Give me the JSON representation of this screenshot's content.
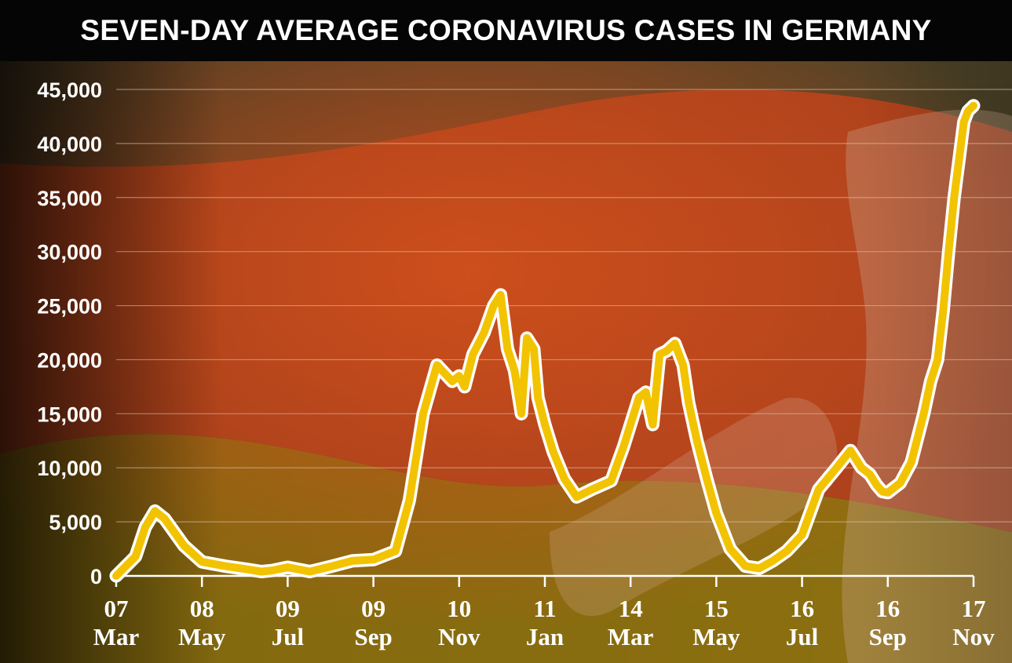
{
  "title": "SEVEN-DAY AVERAGE CORONAVIRUS CASES IN GERMANY",
  "colors": {
    "line": "#f2c300",
    "line_halo": "#ffffff",
    "title_bg": "#050505",
    "text": "#ffffff",
    "grid": "#d9c7b0"
  },
  "chart_data": {
    "type": "line",
    "title": "SEVEN-DAY AVERAGE CORONAVIRUS CASES IN GERMANY",
    "xlabel": "",
    "ylabel": "",
    "ylim": [
      0,
      45000
    ],
    "y_ticks": [
      "0",
      "5,000",
      "10,000",
      "15,000",
      "20,000",
      "25,000",
      "30,000",
      "35,000",
      "40,000",
      "45,000"
    ],
    "x_ticks": [
      {
        "day": "07",
        "month": "Mar",
        "date": "2020-03-07"
      },
      {
        "day": "08",
        "month": "May",
        "date": "2020-05-08"
      },
      {
        "day": "09",
        "month": "Jul",
        "date": "2020-07-09"
      },
      {
        "day": "09",
        "month": "Sep",
        "date": "2020-09-09"
      },
      {
        "day": "10",
        "month": "Nov",
        "date": "2020-11-10"
      },
      {
        "day": "11",
        "month": "Jan",
        "date": "2021-01-11"
      },
      {
        "day": "14",
        "month": "Mar",
        "date": "2021-03-14"
      },
      {
        "day": "15",
        "month": "May",
        "date": "2021-05-15"
      },
      {
        "day": "16",
        "month": "Jul",
        "date": "2021-07-16"
      },
      {
        "day": "16",
        "month": "Sep",
        "date": "2021-09-16"
      },
      {
        "day": "17",
        "month": "Nov",
        "date": "2021-11-17"
      }
    ],
    "grid": true,
    "legend": "none",
    "series": [
      {
        "x": [
          "2020-03-07",
          "2020-03-21",
          "2020-03-28",
          "2020-04-04",
          "2020-04-11",
          "2020-04-25",
          "2020-05-08",
          "2020-05-25",
          "2020-06-10",
          "2020-06-20",
          "2020-06-28",
          "2020-07-09",
          "2020-07-25",
          "2020-08-10",
          "2020-08-25",
          "2020-09-09",
          "2020-09-25",
          "2020-10-05",
          "2020-10-15",
          "2020-10-25",
          "2020-11-05",
          "2020-11-10",
          "2020-11-14",
          "2020-11-20",
          "2020-11-28",
          "2020-12-05",
          "2020-12-10",
          "2020-12-15",
          "2020-12-20",
          "2020-12-25",
          "2020-12-29",
          "2021-01-03",
          "2021-01-06",
          "2021-01-11",
          "2021-01-17",
          "2021-01-25",
          "2021-02-03",
          "2021-02-14",
          "2021-02-28",
          "2021-03-09",
          "2021-03-20",
          "2021-03-25",
          "2021-03-30",
          "2021-04-04",
          "2021-04-09",
          "2021-04-15",
          "2021-04-21",
          "2021-04-25",
          "2021-05-01",
          "2021-05-08",
          "2021-05-15",
          "2021-05-25",
          "2021-06-05",
          "2021-06-15",
          "2021-06-25",
          "2021-07-05",
          "2021-07-16",
          "2021-07-28",
          "2021-08-10",
          "2021-08-20",
          "2021-08-28",
          "2021-09-03",
          "2021-09-08",
          "2021-09-12",
          "2021-09-16",
          "2021-09-20",
          "2021-09-25",
          "2021-10-03",
          "2021-10-12",
          "2021-10-17",
          "2021-10-22",
          "2021-10-26",
          "2021-10-30",
          "2021-11-03",
          "2021-11-07",
          "2021-11-10",
          "2021-11-13",
          "2021-11-17"
        ],
        "values": [
          0,
          1800,
          4500,
          6000,
          5300,
          2800,
          1300,
          900,
          600,
          400,
          500,
          800,
          400,
          900,
          1400,
          1500,
          2300,
          7000,
          15000,
          19500,
          18000,
          18500,
          17500,
          20500,
          22500,
          25000,
          26000,
          21000,
          19000,
          15000,
          22000,
          21000,
          16500,
          14000,
          11500,
          9000,
          7300,
          8000,
          8800,
          12000,
          16500,
          17000,
          14000,
          20500,
          20800,
          21500,
          19500,
          16000,
          12500,
          9000,
          5800,
          2500,
          900,
          700,
          1400,
          2300,
          3800,
          8000,
          10000,
          11600,
          10000,
          9400,
          8400,
          7800,
          7700,
          8100,
          8600,
          10500,
          15000,
          18000,
          20000,
          24500,
          30000,
          35000,
          39000,
          42000,
          43000,
          43500
        ]
      }
    ]
  }
}
